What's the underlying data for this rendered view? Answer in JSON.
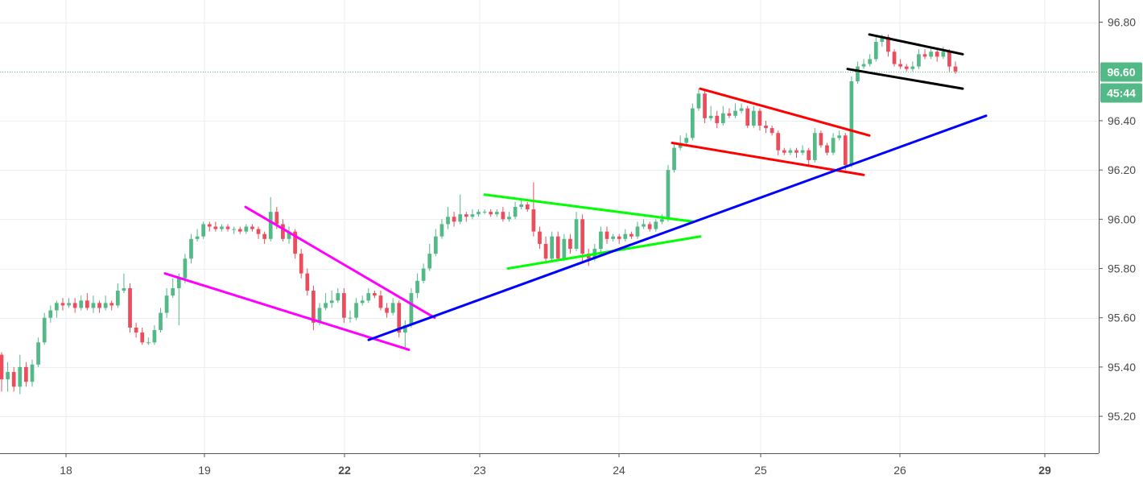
{
  "chart_data": {
    "type": "candlestick",
    "title": "",
    "xlabel": "",
    "ylabel": "",
    "grid": true,
    "ylim": [
      95.05,
      96.89
    ],
    "y_ticks": [
      "96.80",
      "96.40",
      "96.20",
      "96.00",
      "95.80",
      "95.60",
      "95.40",
      "95.20"
    ],
    "y_tick_values": [
      96.8,
      96.4,
      96.2,
      96.0,
      95.8,
      95.6,
      95.4,
      95.2
    ],
    "x_ticks": [
      {
        "label": "18",
        "bold": false
      },
      {
        "label": "19",
        "bold": false
      },
      {
        "label": "22",
        "bold": true
      },
      {
        "label": "23",
        "bold": false
      },
      {
        "label": "24",
        "bold": false
      },
      {
        "label": "25",
        "bold": false
      },
      {
        "label": "26",
        "bold": false
      },
      {
        "label": "29",
        "bold": true
      }
    ],
    "current_price": {
      "label": "96.60",
      "value": 96.6,
      "countdown": "45:44"
    },
    "colors": {
      "up": "#53b987",
      "down": "#eb4d5c",
      "grid": "#e9eff3",
      "axis": "#555555",
      "price_line": "#53b987",
      "badge": "#53b987"
    },
    "candles": [
      [
        95.45,
        95.35,
        95.46,
        95.3
      ],
      [
        95.35,
        95.38,
        95.42,
        95.3
      ],
      [
        95.38,
        95.32,
        95.4,
        95.3
      ],
      [
        95.32,
        95.4,
        95.45,
        95.29
      ],
      [
        95.4,
        95.34,
        95.42,
        95.32
      ],
      [
        95.34,
        95.41,
        95.43,
        95.32
      ],
      [
        95.41,
        95.5,
        95.52,
        95.4
      ],
      [
        95.5,
        95.6,
        95.62,
        95.49
      ],
      [
        95.6,
        95.63,
        95.65,
        95.58
      ],
      [
        95.63,
        95.66,
        95.67,
        95.6
      ],
      [
        95.66,
        95.65,
        95.68,
        95.63
      ],
      [
        95.65,
        95.66,
        95.68,
        95.64
      ],
      [
        95.66,
        95.64,
        95.68,
        95.62
      ],
      [
        95.64,
        95.67,
        95.69,
        95.63
      ],
      [
        95.67,
        95.64,
        95.7,
        95.63
      ],
      [
        95.64,
        95.66,
        95.69,
        95.62
      ],
      [
        95.66,
        95.64,
        95.67,
        95.62
      ],
      [
        95.64,
        95.66,
        95.69,
        95.63
      ],
      [
        95.66,
        95.65,
        95.67,
        95.63
      ],
      [
        95.65,
        95.71,
        95.74,
        95.64
      ],
      [
        95.71,
        95.72,
        95.78,
        95.7
      ],
      [
        95.72,
        95.56,
        95.74,
        95.54
      ],
      [
        95.56,
        95.54,
        95.58,
        95.52
      ],
      [
        95.54,
        95.5,
        95.56,
        95.49
      ],
      [
        95.5,
        95.5,
        95.52,
        95.49
      ],
      [
        95.5,
        95.55,
        95.57,
        95.49
      ],
      [
        95.55,
        95.62,
        95.64,
        95.54
      ],
      [
        95.62,
        95.69,
        95.72,
        95.6
      ],
      [
        95.69,
        95.72,
        95.76,
        95.68
      ],
      [
        95.72,
        95.76,
        95.78,
        95.57
      ],
      [
        95.76,
        95.84,
        95.86,
        95.74
      ],
      [
        95.84,
        95.92,
        95.94,
        95.82
      ],
      [
        95.92,
        95.93,
        95.96,
        95.91
      ],
      [
        95.93,
        95.98,
        95.99,
        95.92
      ],
      [
        95.98,
        95.97,
        95.99,
        95.95
      ],
      [
        95.97,
        95.96,
        95.99,
        95.95
      ],
      [
        95.96,
        95.97,
        95.98,
        95.95
      ],
      [
        95.97,
        95.96,
        95.98,
        95.95
      ],
      [
        95.96,
        95.96,
        95.97,
        95.94
      ],
      [
        95.96,
        95.95,
        95.97,
        95.94
      ],
      [
        95.95,
        95.97,
        95.98,
        95.94
      ],
      [
        95.97,
        95.96,
        95.98,
        95.95
      ],
      [
        95.96,
        95.94,
        95.97,
        95.92
      ],
      [
        95.94,
        95.92,
        95.95,
        95.9
      ],
      [
        95.92,
        96.03,
        96.09,
        95.91
      ],
      [
        96.03,
        95.98,
        96.05,
        95.96
      ],
      [
        95.98,
        95.92,
        96.0,
        95.91
      ],
      [
        95.92,
        95.95,
        95.97,
        95.9
      ],
      [
        95.95,
        95.86,
        95.96,
        95.84
      ],
      [
        95.86,
        95.78,
        95.88,
        95.76
      ],
      [
        95.78,
        95.71,
        95.8,
        95.69
      ],
      [
        95.71,
        95.58,
        95.73,
        95.55
      ],
      [
        95.58,
        95.64,
        95.66,
        95.57
      ],
      [
        95.64,
        95.66,
        95.7,
        95.63
      ],
      [
        95.66,
        95.67,
        95.71,
        95.64
      ],
      [
        95.67,
        95.7,
        95.72,
        95.66
      ],
      [
        95.7,
        95.6,
        95.72,
        95.58
      ],
      [
        95.6,
        95.6,
        95.63,
        95.58
      ],
      [
        95.6,
        95.66,
        95.68,
        95.59
      ],
      [
        95.66,
        95.67,
        95.69,
        95.65
      ],
      [
        95.67,
        95.7,
        95.72,
        95.66
      ],
      [
        95.7,
        95.69,
        95.71,
        95.68
      ],
      [
        95.69,
        95.64,
        95.71,
        95.63
      ],
      [
        95.64,
        95.62,
        95.66,
        95.6
      ],
      [
        95.62,
        95.66,
        95.68,
        95.61
      ],
      [
        95.66,
        95.54,
        95.67,
        95.52
      ],
      [
        95.54,
        95.57,
        95.59,
        95.48
      ],
      [
        95.57,
        95.7,
        95.72,
        95.56
      ],
      [
        95.7,
        95.75,
        95.78,
        95.68
      ],
      [
        95.75,
        95.8,
        95.82,
        95.74
      ],
      [
        95.8,
        95.86,
        95.9,
        95.79
      ],
      [
        95.86,
        95.93,
        95.96,
        95.85
      ],
      [
        95.93,
        95.98,
        96.0,
        95.92
      ],
      [
        95.98,
        96.01,
        96.05,
        95.96
      ],
      [
        96.01,
        95.99,
        96.03,
        95.97
      ],
      [
        95.99,
        96.02,
        96.1,
        95.98
      ],
      [
        96.02,
        96.01,
        96.03,
        95.99
      ],
      [
        96.01,
        96.02,
        96.04,
        96.0
      ],
      [
        96.02,
        96.03,
        96.04,
        96.01
      ],
      [
        96.03,
        96.03,
        96.04,
        96.02
      ],
      [
        96.03,
        96.02,
        96.04,
        96.01
      ],
      [
        96.02,
        96.03,
        96.04,
        96.01
      ],
      [
        96.03,
        96.0,
        96.05,
        95.99
      ],
      [
        96.0,
        96.01,
        96.03,
        95.99
      ],
      [
        96.01,
        96.05,
        96.07,
        96.0
      ],
      [
        96.05,
        96.06,
        96.08,
        96.04
      ],
      [
        96.06,
        96.04,
        96.07,
        96.03
      ],
      [
        96.04,
        95.95,
        96.15,
        95.93
      ],
      [
        95.95,
        95.9,
        95.97,
        95.88
      ],
      [
        95.9,
        95.84,
        95.93,
        95.82
      ],
      [
        95.84,
        95.93,
        95.95,
        95.83
      ],
      [
        95.93,
        95.84,
        95.95,
        95.83
      ],
      [
        95.84,
        95.92,
        95.94,
        95.83
      ],
      [
        95.92,
        95.88,
        95.94,
        95.86
      ],
      [
        95.88,
        96.0,
        96.03,
        95.87
      ],
      [
        96.0,
        95.86,
        96.02,
        95.82
      ],
      [
        95.86,
        95.84,
        95.88,
        95.81
      ],
      [
        95.84,
        95.88,
        95.9,
        95.83
      ],
      [
        95.88,
        95.95,
        95.97,
        95.86
      ],
      [
        95.95,
        95.92,
        95.97,
        95.9
      ],
      [
        95.92,
        95.93,
        95.94,
        95.91
      ],
      [
        95.93,
        95.92,
        95.94,
        95.9
      ],
      [
        95.92,
        95.94,
        95.96,
        95.91
      ],
      [
        95.94,
        95.93,
        95.95,
        95.92
      ],
      [
        95.93,
        95.97,
        95.99,
        95.92
      ],
      [
        95.97,
        95.98,
        96.0,
        95.96
      ],
      [
        95.98,
        95.96,
        95.99,
        95.95
      ],
      [
        95.96,
        95.99,
        96.0,
        95.95
      ],
      [
        95.99,
        96.0,
        96.02,
        95.98
      ],
      [
        96.0,
        96.2,
        96.22,
        95.99
      ],
      [
        96.2,
        96.29,
        96.31,
        96.19
      ],
      [
        96.29,
        96.31,
        96.34,
        96.28
      ],
      [
        96.31,
        96.33,
        96.35,
        96.3
      ],
      [
        96.33,
        96.45,
        96.47,
        96.32
      ],
      [
        96.45,
        96.51,
        96.53,
        96.44
      ],
      [
        96.51,
        96.41,
        96.52,
        96.39
      ],
      [
        96.41,
        96.42,
        96.46,
        96.4
      ],
      [
        96.42,
        96.39,
        96.44,
        96.37
      ],
      [
        96.39,
        96.43,
        96.46,
        96.38
      ],
      [
        96.43,
        96.42,
        96.45,
        96.41
      ],
      [
        96.42,
        96.44,
        96.47,
        96.41
      ],
      [
        96.44,
        96.45,
        96.47,
        96.43
      ],
      [
        96.45,
        96.38,
        96.46,
        96.37
      ],
      [
        96.38,
        96.44,
        96.46,
        96.37
      ],
      [
        96.44,
        96.38,
        96.45,
        96.36
      ],
      [
        96.38,
        96.37,
        96.4,
        96.35
      ],
      [
        96.37,
        96.35,
        96.38,
        96.34
      ],
      [
        96.35,
        96.28,
        96.36,
        96.26
      ],
      [
        96.28,
        96.27,
        96.29,
        96.26
      ],
      [
        96.27,
        96.28,
        96.29,
        96.26
      ],
      [
        96.28,
        96.27,
        96.29,
        96.25
      ],
      [
        96.27,
        96.28,
        96.3,
        96.26
      ],
      [
        96.28,
        96.24,
        96.29,
        96.22
      ],
      [
        96.24,
        96.35,
        96.37,
        96.23
      ],
      [
        96.35,
        96.3,
        96.36,
        96.29
      ],
      [
        96.3,
        96.27,
        96.31,
        96.26
      ],
      [
        96.27,
        96.33,
        96.35,
        96.26
      ],
      [
        96.33,
        96.34,
        96.36,
        96.32
      ],
      [
        96.34,
        96.22,
        96.35,
        96.2
      ],
      [
        96.22,
        96.56,
        96.58,
        96.21
      ],
      [
        96.56,
        96.62,
        96.64,
        96.55
      ],
      [
        96.62,
        96.63,
        96.65,
        96.61
      ],
      [
        96.63,
        96.65,
        96.67,
        96.62
      ],
      [
        96.65,
        96.72,
        96.74,
        96.64
      ],
      [
        96.72,
        96.74,
        96.75,
        96.7
      ],
      [
        96.74,
        96.68,
        96.75,
        96.66
      ],
      [
        96.68,
        96.63,
        96.69,
        96.62
      ],
      [
        96.63,
        96.62,
        96.65,
        96.61
      ],
      [
        96.62,
        96.61,
        96.63,
        96.6
      ],
      [
        96.61,
        96.62,
        96.64,
        96.6
      ],
      [
        96.62,
        96.67,
        96.69,
        96.61
      ],
      [
        96.67,
        96.66,
        96.69,
        96.65
      ],
      [
        96.66,
        96.68,
        96.7,
        96.65
      ],
      [
        96.68,
        96.66,
        96.69,
        96.64
      ],
      [
        96.66,
        96.68,
        96.7,
        96.65
      ],
      [
        96.68,
        96.62,
        96.69,
        96.6
      ],
      [
        96.62,
        96.6,
        96.64,
        96.59
      ]
    ],
    "trendlines": [
      {
        "color": "#ff00ff",
        "points": [
          [
            95.78,
            0
          ],
          [
            95.47,
            1
          ]
        ]
      },
      {
        "color": "#ff00ff",
        "points": [
          [
            96.05,
            0
          ],
          [
            95.6,
            1
          ]
        ]
      },
      {
        "color": "#00ff00",
        "points": [
          [
            96.1,
            0
          ],
          [
            95.99,
            1
          ]
        ]
      },
      {
        "color": "#00ff00",
        "points": [
          [
            95.8,
            0
          ],
          [
            95.93,
            1
          ]
        ]
      },
      {
        "color": "#ff0000",
        "points": [
          [
            96.53,
            0
          ],
          [
            96.34,
            1
          ]
        ]
      },
      {
        "color": "#ff0000",
        "points": [
          [
            96.31,
            0
          ],
          [
            96.18,
            1
          ]
        ]
      },
      {
        "color": "#000000",
        "points": [
          [
            96.75,
            0
          ],
          [
            96.67,
            1
          ]
        ]
      },
      {
        "color": "#000000",
        "points": [
          [
            96.61,
            0
          ],
          [
            96.53,
            1
          ]
        ]
      },
      {
        "color": "#0000ff",
        "points": [
          [
            95.51,
            0
          ],
          [
            96.42,
            1
          ]
        ]
      }
    ]
  }
}
